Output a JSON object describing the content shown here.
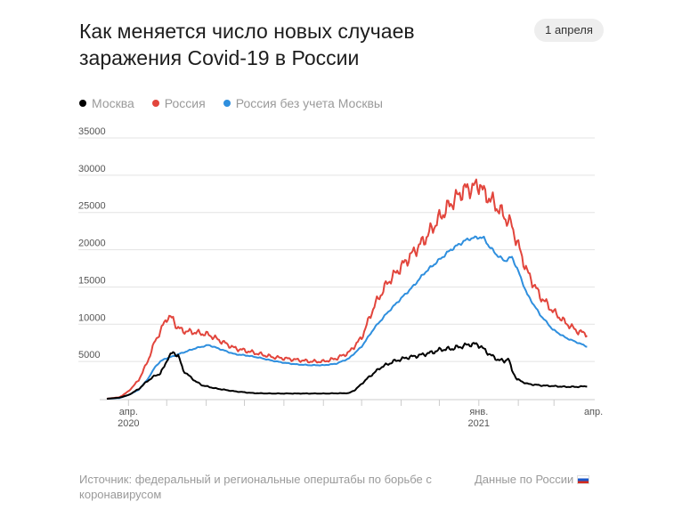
{
  "header": {
    "title": "Как меняется число новых случаев заражения Covid-19 в России",
    "date_badge": "1 апреля"
  },
  "legend": [
    {
      "label": "Москва",
      "color": "#000000"
    },
    {
      "label": "Россия",
      "color": "#e2453c"
    },
    {
      "label": "Россия без учета Москвы",
      "color": "#2f8fde"
    }
  ],
  "footer": {
    "source": "Источник: федеральный и региональные оперштабы по борьбе с коронавирусом",
    "note": "Данные по России"
  },
  "chart_data": {
    "type": "line",
    "title": "Как меняется число новых случаев заражения Covid-19 в России",
    "xlabel": "",
    "ylabel": "",
    "x_unit": "days since 2020-03-15",
    "xlim": [
      0,
      383
    ],
    "ylim": [
      0,
      35000
    ],
    "yticks": [
      5000,
      10000,
      15000,
      20000,
      25000,
      30000,
      35000
    ],
    "xtick_labels": [
      {
        "x": 17,
        "line1": "апр.",
        "line2": "2020"
      },
      {
        "x": 292,
        "line1": "янв.",
        "line2": "2021"
      },
      {
        "x": 382,
        "line1": "апр.",
        "line2": ""
      }
    ],
    "minor_ticks": [
      17,
      47,
      78,
      108,
      139,
      170,
      200,
      231,
      261,
      292,
      323,
      351
    ],
    "grid": true,
    "series": [
      {
        "name": "Москва",
        "color": "#000000",
        "x": [
          0,
          10,
          17,
          25,
          32,
          38,
          42,
          45,
          48,
          52,
          56,
          60,
          65,
          70,
          75,
          85,
          100,
          115,
          130,
          150,
          170,
          190,
          195,
          205,
          215,
          225,
          235,
          245,
          255,
          262,
          270,
          278,
          285,
          290,
          293,
          298,
          305,
          312,
          315,
          318,
          322,
          330,
          340,
          350,
          360,
          370,
          377
        ],
        "values": [
          0,
          150,
          500,
          1300,
          2400,
          3100,
          3400,
          4300,
          5500,
          6200,
          5800,
          3800,
          3000,
          2300,
          1800,
          1400,
          1000,
          750,
          700,
          700,
          700,
          750,
          1200,
          2800,
          4200,
          5000,
          5500,
          5800,
          6200,
          6600,
          6700,
          7000,
          7300,
          7300,
          7100,
          6300,
          5400,
          5000,
          5500,
          3800,
          2600,
          2000,
          1800,
          1700,
          1600,
          1600,
          1700
        ]
      },
      {
        "name": "Россия",
        "color": "#e2453c",
        "x": [
          0,
          10,
          17,
          25,
          32,
          38,
          42,
          45,
          48,
          52,
          55,
          60,
          65,
          70,
          80,
          90,
          100,
          110,
          120,
          130,
          140,
          150,
          160,
          170,
          180,
          190,
          200,
          210,
          220,
          230,
          240,
          250,
          260,
          270,
          280,
          290,
          293,
          296,
          300,
          305,
          312,
          318,
          322,
          330,
          340,
          350,
          360,
          370,
          377
        ],
        "values": [
          0,
          200,
          1000,
          2500,
          5000,
          7800,
          9000,
          10200,
          11000,
          10700,
          9600,
          9100,
          9000,
          8900,
          8600,
          7700,
          6800,
          6400,
          6000,
          5600,
          5400,
          5200,
          5000,
          5000,
          5400,
          6200,
          8200,
          12500,
          15500,
          17500,
          19500,
          21500,
          24000,
          26200,
          28000,
          28500,
          28900,
          27500,
          27000,
          26000,
          24500,
          23200,
          21000,
          17000,
          13800,
          11800,
          10200,
          9000,
          8700
        ]
      },
      {
        "name": "Россия без учета Москвы",
        "color": "#2f8fde",
        "x": [
          0,
          10,
          17,
          25,
          32,
          38,
          42,
          45,
          48,
          52,
          55,
          60,
          70,
          80,
          90,
          100,
          110,
          120,
          130,
          140,
          150,
          160,
          170,
          180,
          190,
          200,
          210,
          220,
          230,
          240,
          250,
          260,
          270,
          280,
          285,
          290,
          293,
          296,
          300,
          305,
          312,
          318,
          322,
          330,
          340,
          350,
          360,
          370,
          377
        ],
        "values": [
          0,
          100,
          500,
          1200,
          2600,
          4300,
          5000,
          5300,
          5500,
          5700,
          5900,
          6200,
          6800,
          7200,
          6600,
          6000,
          5800,
          5500,
          5100,
          4800,
          4600,
          4500,
          4500,
          4700,
          5400,
          7000,
          9500,
          11500,
          13300,
          15000,
          17000,
          18500,
          20000,
          21100,
          21500,
          21600,
          21700,
          21500,
          20500,
          19500,
          18500,
          19000,
          17500,
          14000,
          11300,
          9300,
          8200,
          7500,
          7000
        ]
      }
    ]
  }
}
